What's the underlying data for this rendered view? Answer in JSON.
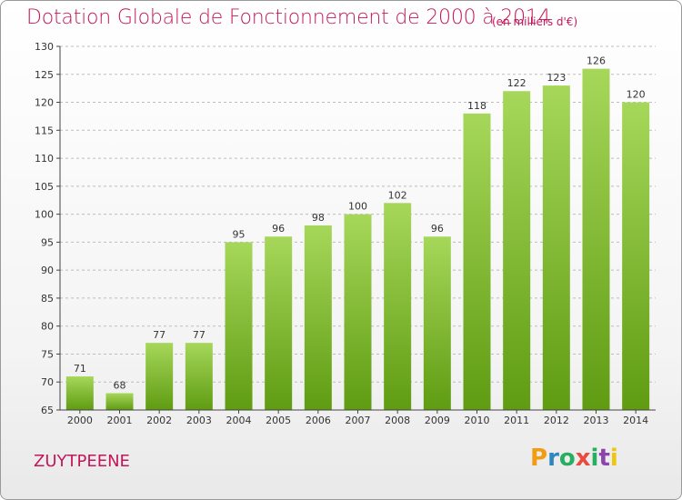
{
  "header": {
    "title": "Dotation Globale de Fonctionnement de 2000 à 2014",
    "unit_note": "(en milliers d'€)"
  },
  "footer": {
    "commune": "ZUYTPEENE",
    "logo": [
      "P",
      "r",
      "o",
      "x",
      "i",
      "t",
      "i"
    ],
    "logo_colors": [
      "#f39c12",
      "#2e86c1",
      "#27ae60",
      "#e74c3c",
      "#27ae60",
      "#8e44ad",
      "#f1c40f"
    ]
  },
  "colors": {
    "title": "#c2185b",
    "bar_top": "#a6d75a",
    "bar_bottom": "#5f9c12",
    "grid": "#bdbdbd"
  },
  "chart_data": {
    "type": "bar",
    "categories": [
      "2000",
      "2001",
      "2002",
      "2003",
      "2004",
      "2005",
      "2006",
      "2007",
      "2008",
      "2009",
      "2010",
      "2011",
      "2012",
      "2013",
      "2014"
    ],
    "values": [
      71,
      68,
      77,
      77,
      95,
      96,
      98,
      100,
      102,
      96,
      118,
      122,
      123,
      126,
      120
    ],
    "title": "Dotation Globale de Fonctionnement de 2000 à 2014",
    "subtitle": "(en milliers d'€)",
    "xlabel": "",
    "ylabel": "",
    "ylim": [
      65,
      130
    ],
    "yticks": [
      65,
      70,
      75,
      80,
      85,
      90,
      95,
      100,
      105,
      110,
      115,
      120,
      125,
      130
    ],
    "grid": true,
    "data_labels": true
  }
}
